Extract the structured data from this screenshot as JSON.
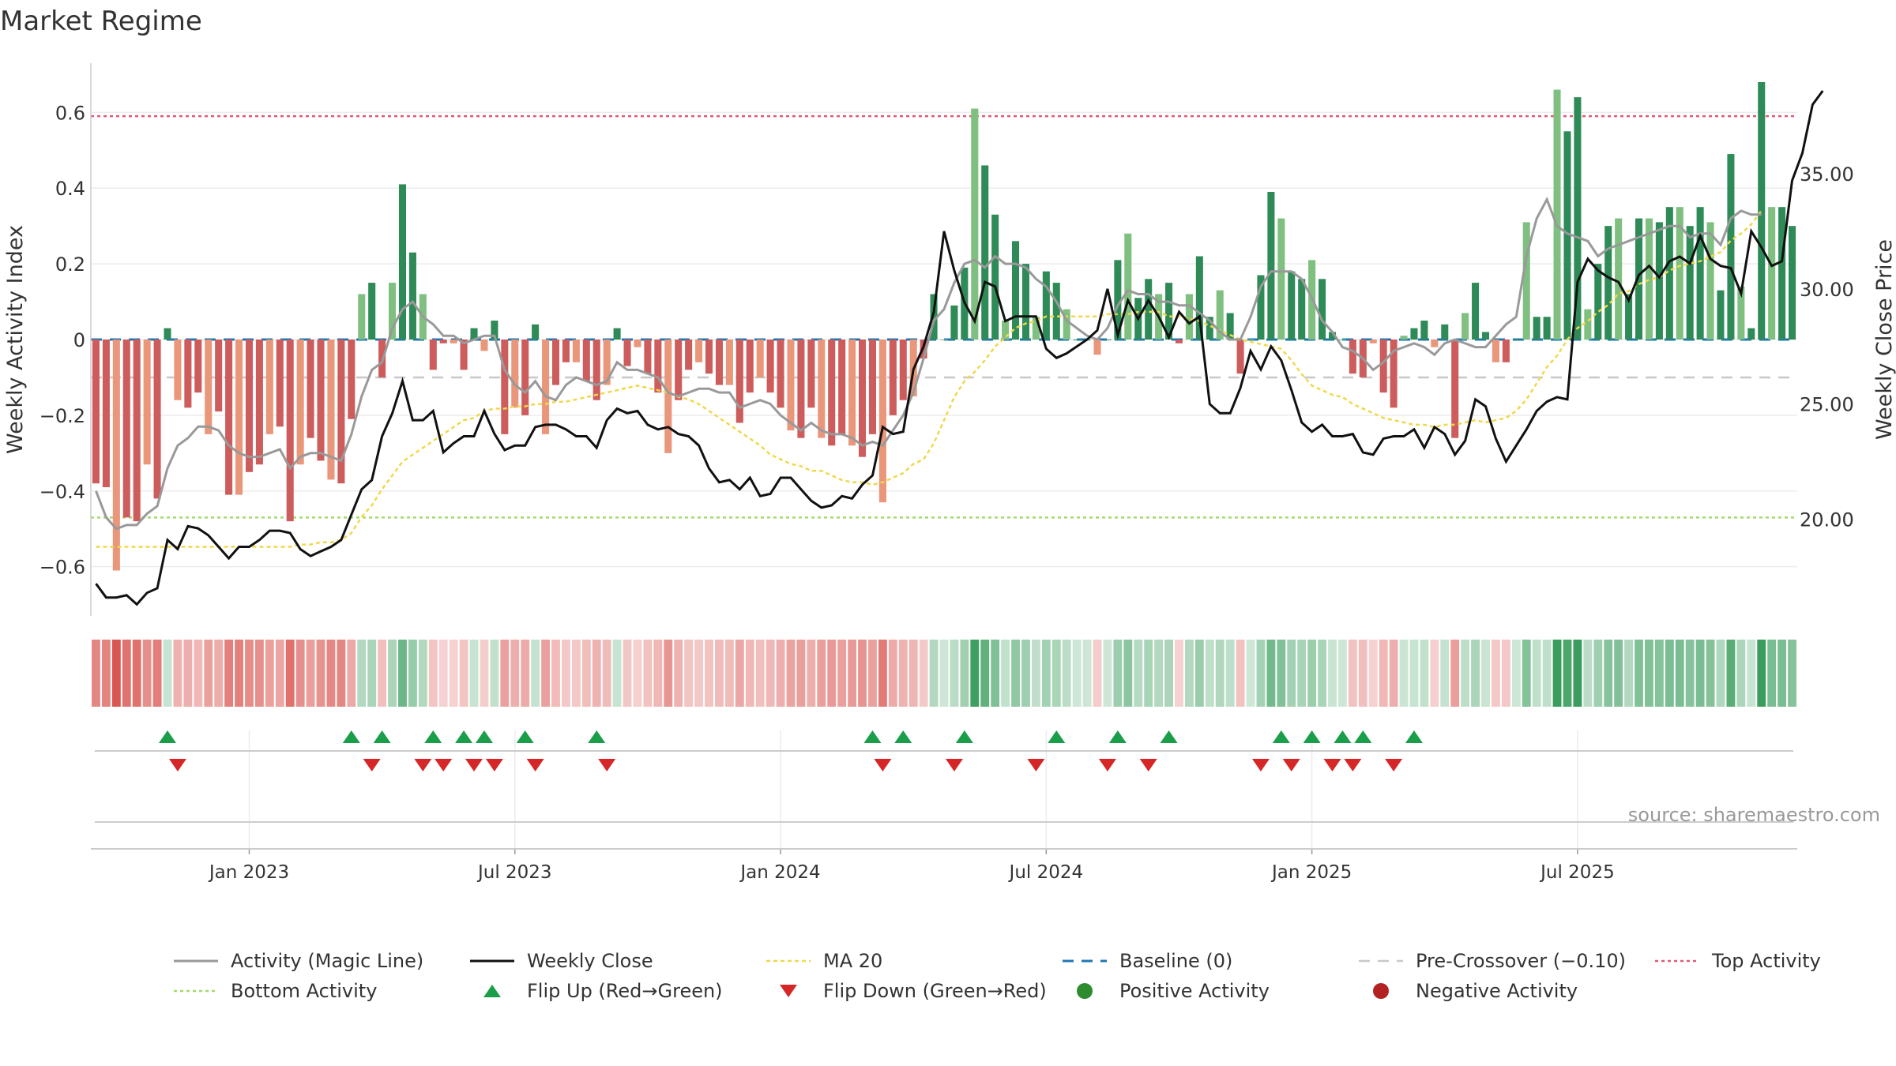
{
  "chart_data": {
    "type": "bar+line",
    "title": "Market Regime",
    "source": "source: sharemaestro.com",
    "ylabel_left": "Weekly Activity Index",
    "ylabel_right": "Weekly Close Price",
    "ylim_left": [
      -0.73,
      0.73
    ],
    "ylim_right": [
      15.8,
      39.8
    ],
    "yticks_left": [
      -0.6,
      -0.4,
      -0.2,
      0,
      0.2,
      0.4,
      0.6
    ],
    "yticks_left_labels": [
      "−0.6",
      "−0.4",
      "−0.2",
      "0",
      "0.2",
      "0.4",
      "0.6"
    ],
    "yticks_right": [
      20,
      25,
      30,
      35
    ],
    "yticks_right_labels": [
      "20.00",
      "25.00",
      "30.00",
      "35.00"
    ],
    "xticks": [
      "Jan 2023",
      "Jul 2023",
      "Jan 2024",
      "Jul 2024",
      "Jan 2025",
      "Jul 2025"
    ],
    "xtick_weeks": [
      15,
      41,
      67,
      93,
      119,
      145
    ],
    "reference_lines": {
      "top": 0.59,
      "bottom": -0.47,
      "pre_crossover": -0.1,
      "baseline": 0
    },
    "colors": {
      "pos_strong": "#2e8b57",
      "pos_light": "#7fbf7f",
      "neg_strong": "#cd5c5c",
      "neg_light": "#e9967a",
      "magic_line": "#999999",
      "close": "#111111",
      "ma20": "#f0d84a",
      "baseline": "#1f77b4",
      "pre_crossover": "#c8c8c8",
      "top": "#e05a78",
      "bottom": "#a6d96a",
      "flip_up": "#1a9e4a",
      "flip_down": "#d62728",
      "heat_pos": "#3a9d5d",
      "heat_neg": "#d9534f"
    },
    "activity": [
      -0.38,
      -0.39,
      -0.61,
      -0.47,
      -0.48,
      -0.33,
      -0.42,
      0.03,
      -0.16,
      -0.18,
      -0.14,
      -0.25,
      -0.19,
      -0.41,
      -0.41,
      -0.35,
      -0.33,
      -0.25,
      -0.23,
      -0.48,
      -0.33,
      -0.26,
      -0.32,
      -0.37,
      -0.38,
      -0.21,
      0.12,
      0.15,
      -0.1,
      0.15,
      0.41,
      0.23,
      0.12,
      -0.08,
      -0.01,
      -0.01,
      -0.08,
      0.03,
      -0.03,
      0.05,
      -0.25,
      -0.18,
      -0.2,
      0.04,
      -0.25,
      -0.12,
      -0.06,
      -0.06,
      -0.11,
      -0.16,
      -0.12,
      0.03,
      -0.07,
      -0.02,
      -0.09,
      -0.14,
      -0.3,
      -0.16,
      -0.08,
      -0.06,
      -0.09,
      -0.12,
      -0.12,
      -0.22,
      -0.14,
      -0.1,
      -0.14,
      -0.18,
      -0.24,
      -0.26,
      -0.18,
      -0.26,
      -0.28,
      -0.25,
      -0.28,
      -0.31,
      -0.25,
      -0.43,
      -0.2,
      -0.16,
      -0.15,
      -0.05,
      0.12,
      0.0,
      0.09,
      0.19,
      0.61,
      0.46,
      0.33,
      0.05,
      0.26,
      0.2,
      0.06,
      0.18,
      0.15,
      0.08,
      0.0,
      0.0,
      -0.04,
      0.0,
      0.21,
      0.28,
      0.11,
      0.16,
      0.12,
      0.15,
      -0.01,
      0.12,
      0.22,
      0.06,
      0.13,
      0.07,
      -0.09,
      0.0,
      0.17,
      0.39,
      0.32,
      0.18,
      0.16,
      0.21,
      0.16,
      0.02,
      0.0,
      -0.09,
      -0.1,
      -0.01,
      -0.14,
      -0.18,
      0.01,
      0.03,
      0.05,
      -0.02,
      0.04,
      -0.26,
      0.07,
      0.15,
      0.02,
      -0.06,
      -0.06,
      0.0,
      0.31,
      0.06,
      0.06,
      0.66,
      0.55,
      0.64,
      0.08,
      0.2,
      0.3,
      0.32,
      0.12,
      0.32,
      0.32,
      0.31,
      0.35,
      0.35,
      0.3,
      0.35,
      0.31,
      0.13,
      0.49,
      0.14,
      0.03,
      0.68,
      0.35,
      0.35,
      0.3
    ],
    "magic_line": [
      -0.4,
      -0.47,
      -0.5,
      -0.49,
      -0.49,
      -0.46,
      -0.44,
      -0.34,
      -0.28,
      -0.26,
      -0.23,
      -0.23,
      -0.24,
      -0.28,
      -0.3,
      -0.31,
      -0.31,
      -0.3,
      -0.29,
      -0.34,
      -0.31,
      -0.3,
      -0.3,
      -0.31,
      -0.32,
      -0.25,
      -0.15,
      -0.08,
      -0.06,
      0.03,
      0.08,
      0.1,
      0.06,
      0.04,
      0.01,
      0.01,
      -0.01,
      0.0,
      0.01,
      0.01,
      -0.08,
      -0.12,
      -0.14,
      -0.11,
      -0.15,
      -0.16,
      -0.12,
      -0.1,
      -0.11,
      -0.12,
      -0.11,
      -0.06,
      -0.08,
      -0.08,
      -0.09,
      -0.1,
      -0.14,
      -0.15,
      -0.14,
      -0.13,
      -0.13,
      -0.14,
      -0.14,
      -0.18,
      -0.17,
      -0.16,
      -0.17,
      -0.2,
      -0.22,
      -0.24,
      -0.22,
      -0.24,
      -0.25,
      -0.25,
      -0.26,
      -0.28,
      -0.27,
      -0.28,
      -0.24,
      -0.2,
      -0.14,
      -0.05,
      0.05,
      0.08,
      0.15,
      0.2,
      0.21,
      0.19,
      0.22,
      0.2,
      0.2,
      0.19,
      0.16,
      0.14,
      0.1,
      0.05,
      0.03,
      0.01,
      0.0,
      0.03,
      0.09,
      0.13,
      0.12,
      0.12,
      0.1,
      0.1,
      0.09,
      0.09,
      0.07,
      0.05,
      0.02,
      0.0,
      0.0,
      0.06,
      0.14,
      0.18,
      0.18,
      0.18,
      0.16,
      0.11,
      0.05,
      0.02,
      -0.02,
      -0.03,
      -0.05,
      -0.08,
      -0.06,
      -0.03,
      -0.02,
      -0.01,
      -0.02,
      -0.04,
      -0.01,
      0.0,
      -0.01,
      -0.02,
      -0.02,
      0.01,
      0.04,
      0.06,
      0.22,
      0.32,
      0.37,
      0.3,
      0.28,
      0.27,
      0.26,
      0.22,
      0.24,
      0.25,
      0.26,
      0.27,
      0.28,
      0.29,
      0.3,
      0.3,
      0.27,
      0.28,
      0.28,
      0.25,
      0.32,
      0.34,
      0.33,
      0.33
    ],
    "weekly_close": [
      17.2,
      16.6,
      16.6,
      16.7,
      16.3,
      16.8,
      17.0,
      19.1,
      18.7,
      19.7,
      19.6,
      19.3,
      18.8,
      18.3,
      18.8,
      18.8,
      19.1,
      19.5,
      19.5,
      19.4,
      18.7,
      18.4,
      18.6,
      18.8,
      19.1,
      20.2,
      21.3,
      21.7,
      23.6,
      24.6,
      26.0,
      24.3,
      24.3,
      24.7,
      22.9,
      23.3,
      23.6,
      23.6,
      24.7,
      23.7,
      23.0,
      23.2,
      23.2,
      24.0,
      24.1,
      24.1,
      23.9,
      23.6,
      23.6,
      23.1,
      24.3,
      24.8,
      24.6,
      24.7,
      24.1,
      23.9,
      24.0,
      23.7,
      23.6,
      23.2,
      22.2,
      21.6,
      21.7,
      21.3,
      21.8,
      21.0,
      21.1,
      21.8,
      21.8,
      21.3,
      20.8,
      20.5,
      20.6,
      21.0,
      20.9,
      21.5,
      21.9,
      24.0,
      23.7,
      23.8,
      26.5,
      27.5,
      29.0,
      32.5,
      30.8,
      29.4,
      28.6,
      30.3,
      30.1,
      28.6,
      28.8,
      28.8,
      28.8,
      27.4,
      27.0,
      27.2,
      27.5,
      27.8,
      28.2,
      30.0,
      28.0,
      29.5,
      28.7,
      29.5,
      28.8,
      27.9,
      29.0,
      28.5,
      28.8,
      25.0,
      24.6,
      24.6,
      25.7,
      27.3,
      26.5,
      27.5,
      26.9,
      25.6,
      24.2,
      23.8,
      24.1,
      23.6,
      23.6,
      23.7,
      22.9,
      22.8,
      23.5,
      23.6,
      23.6,
      23.9,
      23.1,
      24.0,
      23.7,
      22.8,
      23.4,
      25.2,
      24.9,
      23.5,
      22.5,
      23.2,
      23.9,
      24.7,
      25.1,
      25.3,
      25.2,
      30.3,
      31.3,
      30.8,
      30.5,
      30.3,
      29.5,
      30.6,
      31.0,
      30.5,
      31.2,
      31.4,
      31.1,
      32.3,
      31.3,
      31.0,
      30.9,
      29.8,
      32.5,
      31.8,
      31.0,
      31.2,
      34.7,
      35.9,
      38.0,
      38.6
    ],
    "ma20": [
      18.8,
      18.8,
      18.8,
      18.8,
      18.8,
      18.8,
      18.8,
      18.8,
      18.8,
      18.8,
      18.8,
      18.8,
      18.8,
      18.8,
      18.8,
      18.8,
      18.8,
      18.8,
      18.8,
      18.8,
      18.9,
      18.9,
      19.0,
      19.0,
      19.1,
      19.4,
      20.1,
      20.6,
      21.3,
      21.9,
      22.5,
      22.8,
      23.1,
      23.4,
      23.7,
      24.0,
      24.3,
      24.4,
      24.7,
      24.8,
      24.8,
      24.9,
      24.9,
      25.0,
      25.0,
      25.1,
      25.1,
      25.2,
      25.3,
      25.4,
      25.5,
      25.6,
      25.7,
      25.8,
      25.7,
      25.6,
      25.5,
      25.3,
      25.2,
      25.0,
      24.7,
      24.4,
      24.1,
      23.8,
      23.5,
      23.2,
      22.8,
      22.6,
      22.4,
      22.3,
      22.1,
      22.1,
      21.9,
      21.7,
      21.6,
      21.6,
      21.5,
      21.6,
      21.8,
      22.0,
      22.4,
      22.6,
      23.3,
      24.3,
      25.3,
      26.0,
      26.4,
      26.9,
      27.5,
      27.9,
      28.3,
      28.5,
      28.6,
      28.8,
      28.8,
      28.8,
      28.8,
      28.8,
      28.8,
      28.9,
      28.9,
      28.9,
      29.0,
      29.0,
      29.0,
      28.8,
      28.8,
      28.7,
      28.6,
      28.4,
      28.2,
      28.0,
      27.8,
      27.7,
      27.6,
      27.5,
      27.4,
      26.9,
      26.3,
      25.8,
      25.6,
      25.4,
      25.3,
      25.0,
      24.8,
      24.6,
      24.4,
      24.3,
      24.2,
      24.1,
      24.1,
      24.0,
      24.1,
      24.1,
      24.2,
      24.3,
      24.2,
      24.3,
      24.4,
      24.7,
      25.2,
      25.9,
      26.6,
      27.1,
      27.8,
      28.3,
      28.6,
      29.0,
      29.3,
      29.8,
      29.9,
      30.2,
      30.4,
      30.5,
      30.8,
      31.0,
      31.1,
      31.2,
      31.4,
      31.6,
      32.1,
      32.4,
      32.8,
      33.4
    ],
    "flip_up_weeks": [
      7,
      25,
      28,
      33,
      36,
      38,
      42,
      49,
      76,
      79,
      85,
      94,
      100,
      105,
      116,
      119,
      122,
      124,
      129
    ],
    "flip_down_weeks": [
      8,
      27,
      32,
      34,
      37,
      39,
      43,
      50,
      77,
      84,
      92,
      99,
      103,
      114,
      117,
      121,
      123,
      127
    ],
    "legend": [
      "Activity (Magic Line)",
      "Weekly Close",
      "MA 20",
      "Baseline (0)",
      "Pre-Crossover (−0.10)",
      "Top Activity",
      "Bottom Activity",
      "Flip Up (Red→Green)",
      "Flip Down (Green→Red)",
      "Positive Activity",
      "Negative Activity"
    ]
  }
}
